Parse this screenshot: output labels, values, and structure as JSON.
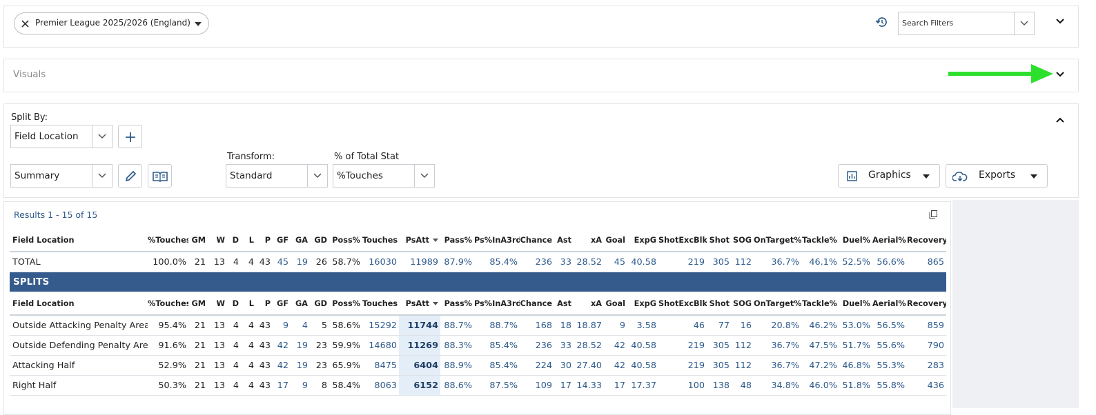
{
  "filters": {
    "chip": "Premier League 2025/2026 (England)",
    "search_placeholder": "Search Filters"
  },
  "visuals": {
    "title": "Visuals"
  },
  "split_panel": {
    "split_by_label": "Split By:",
    "split_by": "Field Location",
    "view": "Summary",
    "transform_label": "Transform:",
    "transform": "Standard",
    "total_stat_label": "% of Total Stat",
    "total_stat": "%Touches",
    "graphics_button": "Graphics",
    "exports_button": "Exports"
  },
  "results": {
    "summary": "Results 1 - 15 of 15",
    "columns": [
      "Field Location",
      "%Touches",
      "GM",
      "W",
      "D",
      "L",
      "P",
      "GF",
      "GA",
      "GD",
      "Poss%",
      "Touches",
      "PsAtt",
      "Pass%",
      "Ps%InA3rd",
      "Chance",
      "Ast",
      "xA",
      "Goal",
      "ExpG",
      "ShotExcBlk",
      "Shot",
      "SOG",
      "OnTarget%",
      "Tackle%",
      "Duel%",
      "Aerial%",
      "Recovery"
    ],
    "total_row": [
      "TOTAL",
      "100.0%",
      "21",
      "13",
      "4",
      "4",
      "43",
      "45",
      "19",
      "26",
      "58.7%",
      "16030",
      "11989",
      "87.9%",
      "85.4%",
      "236",
      "33",
      "28.52",
      "45",
      "40.58",
      "219",
      "305",
      "112",
      "36.7%",
      "46.1%",
      "52.5%",
      "56.6%",
      "865"
    ],
    "splits_label": "SPLITS",
    "rows": [
      [
        "Outside Attacking Penalty Area",
        "95.4%",
        "21",
        "13",
        "4",
        "4",
        "43",
        "9",
        "4",
        "5",
        "58.6%",
        "15292",
        "11744",
        "88.7%",
        "88.7%",
        "168",
        "18",
        "18.87",
        "9",
        "3.58",
        "46",
        "77",
        "16",
        "20.8%",
        "46.2%",
        "53.0%",
        "56.5%",
        "859"
      ],
      [
        "Outside Defending Penalty Area",
        "91.6%",
        "21",
        "13",
        "4",
        "4",
        "43",
        "42",
        "19",
        "23",
        "59.9%",
        "14680",
        "11269",
        "88.3%",
        "85.4%",
        "236",
        "33",
        "28.52",
        "42",
        "40.58",
        "219",
        "305",
        "112",
        "36.7%",
        "47.5%",
        "51.7%",
        "55.6%",
        "790"
      ],
      [
        "Attacking Half",
        "52.9%",
        "21",
        "13",
        "4",
        "4",
        "43",
        "42",
        "19",
        "23",
        "65.9%",
        "8475",
        "6404",
        "88.9%",
        "85.4%",
        "224",
        "30",
        "27.40",
        "42",
        "40.58",
        "219",
        "305",
        "112",
        "36.7%",
        "47.2%",
        "46.8%",
        "55.3%",
        "283"
      ],
      [
        "Right Half",
        "50.3%",
        "21",
        "13",
        "4",
        "4",
        "43",
        "17",
        "9",
        "8",
        "58.4%",
        "8063",
        "6152",
        "88.6%",
        "87.5%",
        "109",
        "17",
        "14.33",
        "17",
        "17.37",
        "100",
        "138",
        "48",
        "34.8%",
        "46.0%",
        "51.8%",
        "55.8%",
        "436"
      ]
    ]
  }
}
